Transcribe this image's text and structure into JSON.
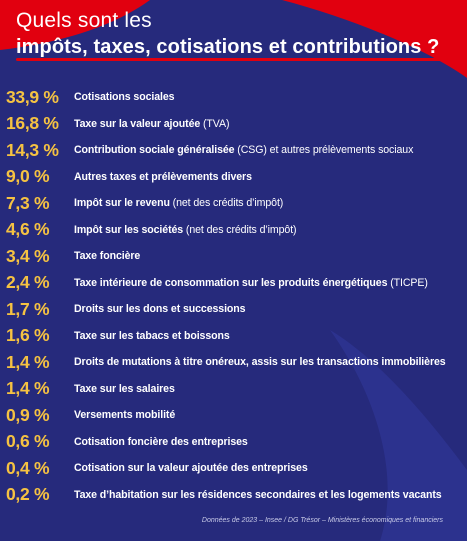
{
  "title": {
    "line1": "Quels sont les",
    "line2": "impôts, taxes, cotisations et contributions ?"
  },
  "items": [
    {
      "percent": "33,9 %",
      "label_bold": "Cotisations sociales",
      "label_normal": ""
    },
    {
      "percent": "16,8 %",
      "label_bold": "Taxe sur la valeur ajoutée",
      "label_normal": " (TVA)"
    },
    {
      "percent": "14,3 %",
      "label_bold": "Contribution sociale généralisée",
      "label_normal": " (CSG) et autres prélèvements sociaux"
    },
    {
      "percent": "9,0 %",
      "label_bold": "Autres taxes et prélèvements divers",
      "label_normal": ""
    },
    {
      "percent": "7,3 %",
      "label_bold": "Impôt sur le revenu",
      "label_normal": " (net des crédits d’impôt)"
    },
    {
      "percent": "4,6 %",
      "label_bold": "Impôt sur les sociétés",
      "label_normal": " (net des crédits d’impôt)"
    },
    {
      "percent": "3,4 %",
      "label_bold": "Taxe foncière",
      "label_normal": ""
    },
    {
      "percent": "2,4 %",
      "label_bold": "Taxe intérieure de consommation sur les produits énergétiques",
      "label_normal": " (TICPE)"
    },
    {
      "percent": "1,7 %",
      "label_bold": "Droits sur les dons et successions",
      "label_normal": ""
    },
    {
      "percent": "1,6 %",
      "label_bold": "Taxe sur les tabacs et boissons",
      "label_normal": ""
    },
    {
      "percent": "1,4 %",
      "label_bold": "Droits de mutations à titre onéreux, assis sur les transactions immobilières",
      "label_normal": ""
    },
    {
      "percent": "1,4 %",
      "label_bold": "Taxe sur les salaires",
      "label_normal": ""
    },
    {
      "percent": "0,9 %",
      "label_bold": "Versements mobilité",
      "label_normal": ""
    },
    {
      "percent": "0,6 %",
      "label_bold": "Cotisation foncière des entreprises",
      "label_normal": ""
    },
    {
      "percent": "0,4 %",
      "label_bold": "Cotisation sur la valeur ajoutée des entreprises",
      "label_normal": ""
    },
    {
      "percent": "0,2 %",
      "label_bold": "Taxe d’habitation sur les résidences secondaires et les logements vacants",
      "label_normal": ""
    }
  ],
  "source": "Données de 2023 – Insee / DG Trésor – Ministères économiques et financiers",
  "colors": {
    "background": "#262a7c",
    "accent_red": "#e1000f",
    "percent_yellow": "#f5c242",
    "text_white": "#ffffff",
    "wave_blue": "#2e3390"
  }
}
